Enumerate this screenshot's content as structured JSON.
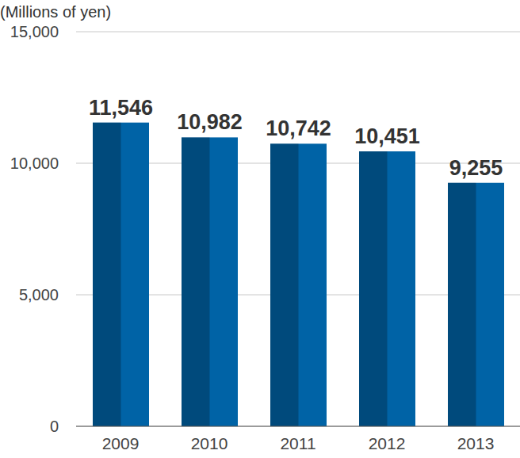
{
  "chart_data": {
    "type": "bar",
    "y_label": "(Millions of yen)",
    "categories": [
      "2009",
      "2010",
      "2011",
      "2012",
      "2013"
    ],
    "values": [
      11546,
      10982,
      10742,
      10451,
      9255
    ],
    "value_labels": [
      "11,546",
      "10,982",
      "10,742",
      "10,451",
      "9,255"
    ],
    "color": "#0063a6",
    "ylim": [
      0,
      15000
    ],
    "yticks": [
      0,
      {
        "value": 5000,
        "label": "5,000"
      },
      {
        "value": 10000,
        "label": "10,000"
      },
      {
        "value": 15000,
        "label": "15,000"
      }
    ],
    "grid": true,
    "data_labels": true
  }
}
